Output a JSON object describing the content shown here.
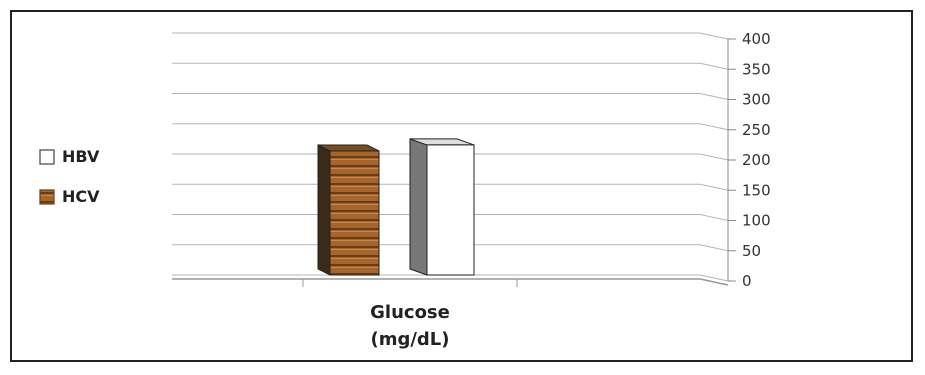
{
  "chart_data": {
    "type": "bar",
    "categories": [
      "Glucose (mg/dL)"
    ],
    "category_lines": [
      "Glucose",
      "(mg/dL)"
    ],
    "series": [
      {
        "name": "HBV",
        "values": [
          215
        ],
        "color": "#ffffff"
      },
      {
        "name": "HCV",
        "values": [
          205
        ],
        "color": "#a0612a"
      }
    ],
    "ylim": [
      0,
      400
    ],
    "yticks": [
      0,
      50,
      100,
      150,
      200,
      250,
      300,
      350,
      400
    ],
    "grid": true,
    "legend": "left",
    "title": "",
    "xlabel": "",
    "ylabel": ""
  }
}
